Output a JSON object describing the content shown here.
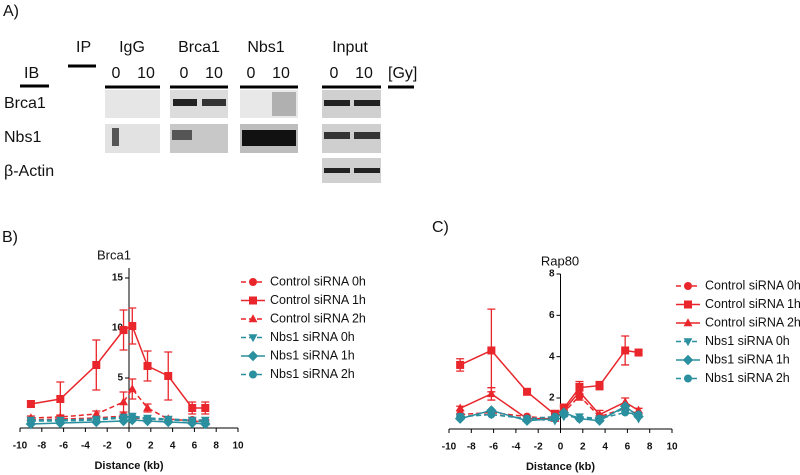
{
  "figure_a": {
    "label": "A)",
    "ip": "IP",
    "ib": "IB",
    "unit": "[Gy]",
    "columns": [
      {
        "name": "IgG",
        "doses": [
          "0",
          "10"
        ]
      },
      {
        "name": "Brca1",
        "doses": [
          "0",
          "10"
        ]
      },
      {
        "name": "Nbs1",
        "doses": [
          "0",
          "10"
        ]
      },
      {
        "name": "Input",
        "doses": [
          "0",
          "10"
        ]
      }
    ],
    "rows": [
      "Brca1",
      "Nbs1",
      "β-Actin"
    ]
  },
  "chart_data": [
    {
      "type": "line",
      "panel_label": "B)",
      "title": "Brca1",
      "x_label": "Distance (kb)",
      "x": [
        -9,
        -6.3,
        -3,
        -0.5,
        0.3,
        1.7,
        3.6,
        5.8,
        7
      ],
      "xlim": [
        -10,
        10
      ],
      "xticks": [
        -10,
        -8,
        -6,
        -4,
        -2,
        0,
        2,
        4,
        6,
        8,
        10
      ],
      "ylim": [
        0,
        16
      ],
      "yticks": [
        5,
        10,
        15
      ],
      "y_axis_crossing": 0,
      "legend": "right",
      "series": [
        {
          "name": "Control siRNA 0h",
          "color": "#e8262b",
          "marker": "circle",
          "line_style": "dashed",
          "values": [
            0.8,
            0.9,
            1.0,
            1.2,
            1.0,
            0.9,
            0.8,
            0.8,
            0.7
          ]
        },
        {
          "name": "Control siRNA 1h",
          "color": "#e8262b",
          "marker": "square",
          "line_style": "solid",
          "values": [
            2.4,
            2.9,
            6.3,
            9.8,
            10.2,
            6.2,
            5.2,
            2.0,
            2.0
          ],
          "errors": [
            0.3,
            1.7,
            2.5,
            2.0,
            1.8,
            1.5,
            2.4,
            0.6,
            0.6
          ]
        },
        {
          "name": "Control siRNA 2h",
          "color": "#e8262b",
          "marker": "triangle",
          "line_style": "dashed",
          "values": [
            1.0,
            1.1,
            1.4,
            2.6,
            3.9,
            2.0,
            0.9,
            0.7,
            0.6
          ],
          "errors": [
            0.2,
            0.2,
            0.3,
            1.0,
            1.0,
            0.4,
            0.2,
            0.2,
            0.2
          ]
        },
        {
          "name": "Nbs1 siRNA 0h",
          "color": "#2a8f9e",
          "marker": "triangle-down",
          "line_style": "dashed",
          "values": [
            0.8,
            0.8,
            0.9,
            1.1,
            1.2,
            1.0,
            0.9,
            0.8,
            0.8
          ]
        },
        {
          "name": "Nbs1 siRNA 1h",
          "color": "#2a8f9e",
          "marker": "diamond",
          "line_style": "solid",
          "values": [
            0.4,
            0.5,
            0.6,
            0.7,
            0.8,
            0.7,
            0.6,
            0.5,
            0.4
          ]
        },
        {
          "name": "Nbs1 siRNA 2h",
          "color": "#2a8f9e",
          "marker": "circle",
          "line_style": "dashed",
          "values": [
            0.7,
            0.7,
            0.8,
            1.0,
            1.1,
            0.9,
            0.8,
            0.7,
            0.6
          ]
        }
      ]
    },
    {
      "type": "line",
      "panel_label": "C)",
      "title": "Rap80",
      "x_label": "Distance (kb)",
      "x": [
        -9,
        -6.2,
        -3,
        -0.5,
        0.3,
        1.7,
        3.5,
        5.8,
        7
      ],
      "xlim": [
        -10,
        10
      ],
      "xticks": [
        -10,
        -8,
        -6,
        -4,
        -2,
        0,
        2,
        4,
        6,
        8,
        10
      ],
      "ylim": [
        0.5,
        8
      ],
      "yticks": [
        2,
        4,
        6,
        8
      ],
      "y_axis_crossing": 0,
      "legend": "right",
      "series": [
        {
          "name": "Control siRNA 0h",
          "color": "#e8262b",
          "marker": "circle",
          "line_style": "dashed",
          "values": [
            1.2,
            1.3,
            1.1,
            1.0,
            1.3,
            2.1,
            1.1,
            1.5,
            1.2
          ]
        },
        {
          "name": "Control siRNA 1h",
          "color": "#e8262b",
          "marker": "square",
          "line_style": "solid",
          "values": [
            3.6,
            4.3,
            2.3,
            1.2,
            1.5,
            2.5,
            2.6,
            4.3,
            4.2
          ],
          "errors": [
            0.3,
            2.0,
            0.1,
            0.2,
            0.2,
            0.3,
            0.2,
            0.7,
            0.1
          ]
        },
        {
          "name": "Control siRNA 2h",
          "color": "#e8262b",
          "marker": "triangle",
          "line_style": "solid",
          "values": [
            1.5,
            2.2,
            1.0,
            1.0,
            1.4,
            2.3,
            1.2,
            1.8,
            1.4
          ],
          "errors": [
            0.1,
            0.3,
            0.1,
            0.1,
            0.2,
            0.4,
            0.2,
            0.2,
            0.1
          ]
        },
        {
          "name": "Nbs1 siRNA 0h",
          "color": "#2a8f9e",
          "marker": "triangle-down",
          "line_style": "dashed",
          "values": [
            1.1,
            1.2,
            1.0,
            0.9,
            1.1,
            1.1,
            1.0,
            1.5,
            1.0
          ]
        },
        {
          "name": "Nbs1 siRNA 1h",
          "color": "#2a8f9e",
          "marker": "diamond",
          "line_style": "solid",
          "values": [
            1.0,
            1.4,
            0.9,
            1.0,
            1.3,
            1.0,
            0.9,
            1.6,
            1.1
          ]
        },
        {
          "name": "Nbs1 siRNA 2h",
          "color": "#2a8f9e",
          "marker": "circle",
          "line_style": "dashed",
          "values": [
            1.1,
            1.2,
            1.0,
            1.1,
            1.2,
            1.0,
            1.0,
            1.3,
            1.2
          ]
        }
      ]
    }
  ]
}
